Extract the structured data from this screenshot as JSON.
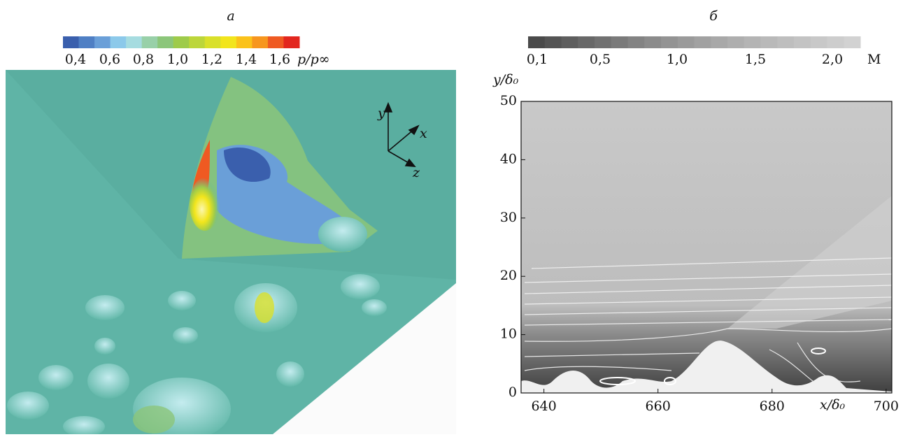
{
  "figure": {
    "panel_a": {
      "label": "а",
      "colorbar": {
        "colors": [
          "#3a5fad",
          "#4f7fc4",
          "#6a9fd8",
          "#8cc9ea",
          "#a6dce0",
          "#98d0a8",
          "#8cc67a",
          "#9ecb4a",
          "#bcd63a",
          "#d9e02a",
          "#f2e51c",
          "#fbc21a",
          "#f7961e",
          "#ef5a22",
          "#e2261e"
        ],
        "tick_labels": [
          "0,4",
          "0,6",
          "0,8",
          "1,0",
          "1,2",
          "1,4",
          "1,6"
        ],
        "unit": "p/p∞"
      },
      "axis_labels": {
        "x": "x",
        "y": "y",
        "z": "z"
      }
    },
    "panel_b": {
      "label": "б",
      "colorbar": {
        "colors": [
          "#4a4a4a",
          "#545454",
          "#5e5e5e",
          "#686868",
          "#717171",
          "#7a7a7a",
          "#838383",
          "#8b8b8b",
          "#939393",
          "#9a9a9a",
          "#a1a1a1",
          "#a8a8a8",
          "#aeaeae",
          "#b4b4b4",
          "#b9b9b9",
          "#bebebe",
          "#c3c3c3",
          "#c8c8c8",
          "#cdcdcd",
          "#d2d2d2"
        ],
        "tick_labels": [
          "0,1",
          "0,5",
          "1,0",
          "1,5",
          "2,0"
        ],
        "unit": "M"
      },
      "x_label": "x/δ₀",
      "y_label": "y/δ₀",
      "xlim": [
        636,
        701
      ],
      "ylim": [
        0,
        50
      ],
      "xticks": [
        640,
        660,
        680,
        700
      ],
      "yticks": [
        0,
        10,
        20,
        30,
        40,
        50
      ]
    }
  }
}
